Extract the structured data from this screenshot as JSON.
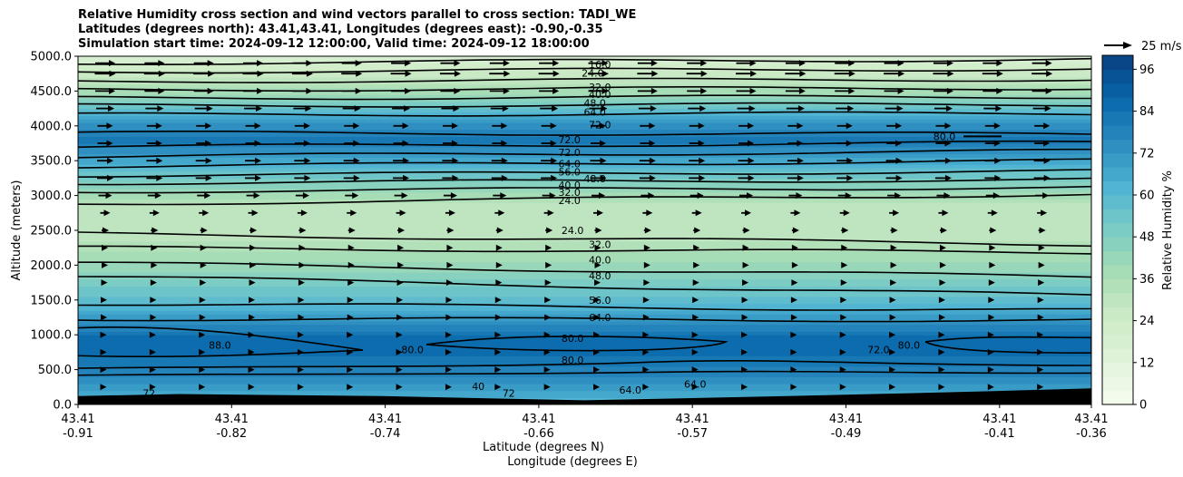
{
  "chart_data": {
    "type": "heatmap",
    "title_lines": [
      "Relative Humidity cross section and wind vectors parallel to cross section: TADI_WE",
      "Latitudes (degrees north): 43.41,43.41, Longitudes (degrees east): -0.90,-0.35",
      "Simulation start time: 2024-09-12 12:00:00, Valid time: 2024-09-12 18:00:00"
    ],
    "ylabel": "Altitude (meters)",
    "xlabel_lines": [
      "Latitude (degrees N)",
      "Longitude (degrees E)"
    ],
    "colorbar_label": "Relative Humidity %",
    "quiver_key_label": "25 m/s",
    "ylim": [
      0,
      5000
    ],
    "y_ticks": [
      "0.0",
      "500.0",
      "1000.0",
      "1500.0",
      "2000.0",
      "2500.0",
      "3000.0",
      "3500.0",
      "4000.0",
      "4500.0",
      "5000.0"
    ],
    "x_ticks": [
      {
        "lat": "43.41",
        "lon": "-0.91"
      },
      {
        "lat": "43.41",
        "lon": "-0.82"
      },
      {
        "lat": "43.41",
        "lon": "-0.74"
      },
      {
        "lat": "43.41",
        "lon": "-0.66"
      },
      {
        "lat": "43.41",
        "lon": "-0.57"
      },
      {
        "lat": "43.41",
        "lon": "-0.49"
      },
      {
        "lat": "43.41",
        "lon": "-0.41"
      },
      {
        "lat": "43.41",
        "lon": "-0.36"
      }
    ],
    "colorbar_range": [
      0,
      100
    ],
    "colorbar_ticks": [
      "0",
      "12",
      "24",
      "36",
      "48",
      "60",
      "72",
      "84",
      "96"
    ],
    "colorbar_levels": 25,
    "rh_profile": [
      {
        "alt": 0,
        "rh": 60
      },
      {
        "alt": 250,
        "rh": 70
      },
      {
        "alt": 600,
        "rh": 82
      },
      {
        "alt": 900,
        "rh": 88
      },
      {
        "alt": 1200,
        "rh": 72
      },
      {
        "alt": 1500,
        "rh": 58
      },
      {
        "alt": 1800,
        "rh": 48
      },
      {
        "alt": 2100,
        "rh": 38
      },
      {
        "alt": 2500,
        "rh": 28
      },
      {
        "alt": 2900,
        "rh": 32
      },
      {
        "alt": 3200,
        "rh": 48
      },
      {
        "alt": 3600,
        "rh": 72
      },
      {
        "alt": 3800,
        "rh": 82
      },
      {
        "alt": 4000,
        "rh": 74
      },
      {
        "alt": 4200,
        "rh": 62
      },
      {
        "alt": 4400,
        "rh": 44
      },
      {
        "alt": 4600,
        "rh": 32
      },
      {
        "alt": 4800,
        "rh": 24
      },
      {
        "alt": 5000,
        "rh": 16
      }
    ],
    "contour_labels": [
      {
        "text": "16.0",
        "alt": 4880,
        "x": 0.515
      },
      {
        "text": "24.0",
        "alt": 4760,
        "x": 0.508
      },
      {
        "text": "32.0",
        "alt": 4560,
        "x": 0.515
      },
      {
        "text": "40.0",
        "alt": 4450,
        "x": 0.515
      },
      {
        "text": "48.0",
        "alt": 4330,
        "x": 0.51
      },
      {
        "text": "64.0",
        "alt": 4200,
        "x": 0.51
      },
      {
        "text": "72.0",
        "alt": 4020,
        "x": 0.515
      },
      {
        "text": "72.0",
        "alt": 3620,
        "x": 0.485
      },
      {
        "text": "64.0",
        "alt": 3460,
        "x": 0.485
      },
      {
        "text": "56.0",
        "alt": 3340,
        "x": 0.485
      },
      {
        "text": "48.0",
        "alt": 3240,
        "x": 0.51
      },
      {
        "text": "40.0",
        "alt": 3150,
        "x": 0.485
      },
      {
        "text": "32.0",
        "alt": 3050,
        "x": 0.485
      },
      {
        "text": "24.0",
        "alt": 2930,
        "x": 0.485
      },
      {
        "text": "24.0",
        "alt": 2500,
        "x": 0.488
      },
      {
        "text": "32.0",
        "alt": 2300,
        "x": 0.515
      },
      {
        "text": "40.0",
        "alt": 2080,
        "x": 0.515
      },
      {
        "text": "48.0",
        "alt": 1850,
        "x": 0.515
      },
      {
        "text": "56.0",
        "alt": 1500,
        "x": 0.515
      },
      {
        "text": "64.0",
        "alt": 1250,
        "x": 0.515
      },
      {
        "text": "80.0",
        "alt": 950,
        "x": 0.488
      },
      {
        "text": "80.0",
        "alt": 640,
        "x": 0.488
      },
      {
        "text": "88.0",
        "alt": 850,
        "x": 0.14
      },
      {
        "text": "80.0",
        "alt": 790,
        "x": 0.33
      },
      {
        "text": "72.0",
        "alt": 790,
        "x": 0.79
      },
      {
        "text": "80.0",
        "alt": 850,
        "x": 0.82
      },
      {
        "text": "80.0",
        "alt": 3850,
        "x": 0.855
      },
      {
        "text": "64.0",
        "alt": 210,
        "x": 0.545
      },
      {
        "text": "64.0",
        "alt": 290,
        "x": 0.609
      },
      {
        "text": "40",
        "alt": 260,
        "x": 0.395
      },
      {
        "text": "72",
        "alt": 160,
        "x": 0.425
      },
      {
        "text": "72",
        "alt": 160,
        "x": 0.07
      },
      {
        "text": "72.0",
        "alt": 3800,
        "x": 0.485
      }
    ],
    "contour_lines": [
      {
        "alt": 4900,
        "slope": 60
      },
      {
        "alt": 4780,
        "slope": 40
      },
      {
        "alt": 4640,
        "slope": 30
      },
      {
        "alt": 4520,
        "slope": 25
      },
      {
        "alt": 4400,
        "slope": 20
      },
      {
        "alt": 4290,
        "slope": 20
      },
      {
        "alt": 4160,
        "slope": 20
      },
      {
        "alt": 3900,
        "slope": -20
      },
      {
        "alt": 3700,
        "slope": 60
      },
      {
        "alt": 3560,
        "slope": 80
      },
      {
        "alt": 3420,
        "slope": 80
      },
      {
        "alt": 3290,
        "slope": 60
      },
      {
        "alt": 3180,
        "slope": 50
      },
      {
        "alt": 3060,
        "slope": 60
      },
      {
        "alt": 2880,
        "slope": 140
      },
      {
        "alt": 2450,
        "slope": -150
      },
      {
        "alt": 2250,
        "slope": -70
      },
      {
        "alt": 2030,
        "slope": -200
      },
      {
        "alt": 1840,
        "slope": -280
      },
      {
        "alt": 1450,
        "slope": -100
      },
      {
        "alt": 1230,
        "slope": -20
      }
    ],
    "wind_rows": [
      {
        "alt": 4900,
        "speed": 22
      },
      {
        "alt": 4750,
        "speed": 23
      },
      {
        "alt": 4500,
        "speed": 22
      },
      {
        "alt": 4250,
        "speed": 20
      },
      {
        "alt": 4000,
        "speed": 17
      },
      {
        "alt": 3750,
        "speed": 17
      },
      {
        "alt": 3500,
        "speed": 18
      },
      {
        "alt": 3250,
        "speed": 18
      },
      {
        "alt": 3000,
        "speed": 15
      },
      {
        "alt": 2750,
        "speed": 11
      },
      {
        "alt": 2500,
        "speed": 8
      },
      {
        "alt": 2250,
        "speed": 6
      },
      {
        "alt": 2000,
        "speed": 6
      },
      {
        "alt": 1750,
        "speed": 5
      },
      {
        "alt": 1500,
        "speed": 4
      },
      {
        "alt": 1250,
        "speed": 4
      },
      {
        "alt": 1000,
        "speed": 3
      },
      {
        "alt": 750,
        "speed": 3
      },
      {
        "alt": 500,
        "speed": 3
      },
      {
        "alt": 250,
        "speed": 3
      }
    ],
    "wind_columns": 20,
    "terrain": [
      {
        "x": 0.0,
        "alt": 120
      },
      {
        "x": 0.1,
        "alt": 150
      },
      {
        "x": 0.3,
        "alt": 120
      },
      {
        "x": 0.5,
        "alt": 60
      },
      {
        "x": 0.7,
        "alt": 120
      },
      {
        "x": 0.9,
        "alt": 190
      },
      {
        "x": 1.0,
        "alt": 230
      }
    ],
    "colors": {
      "terrain": "#000000",
      "contour": "#000000",
      "arrow": "#000000",
      "grid": "#cccccc"
    }
  }
}
